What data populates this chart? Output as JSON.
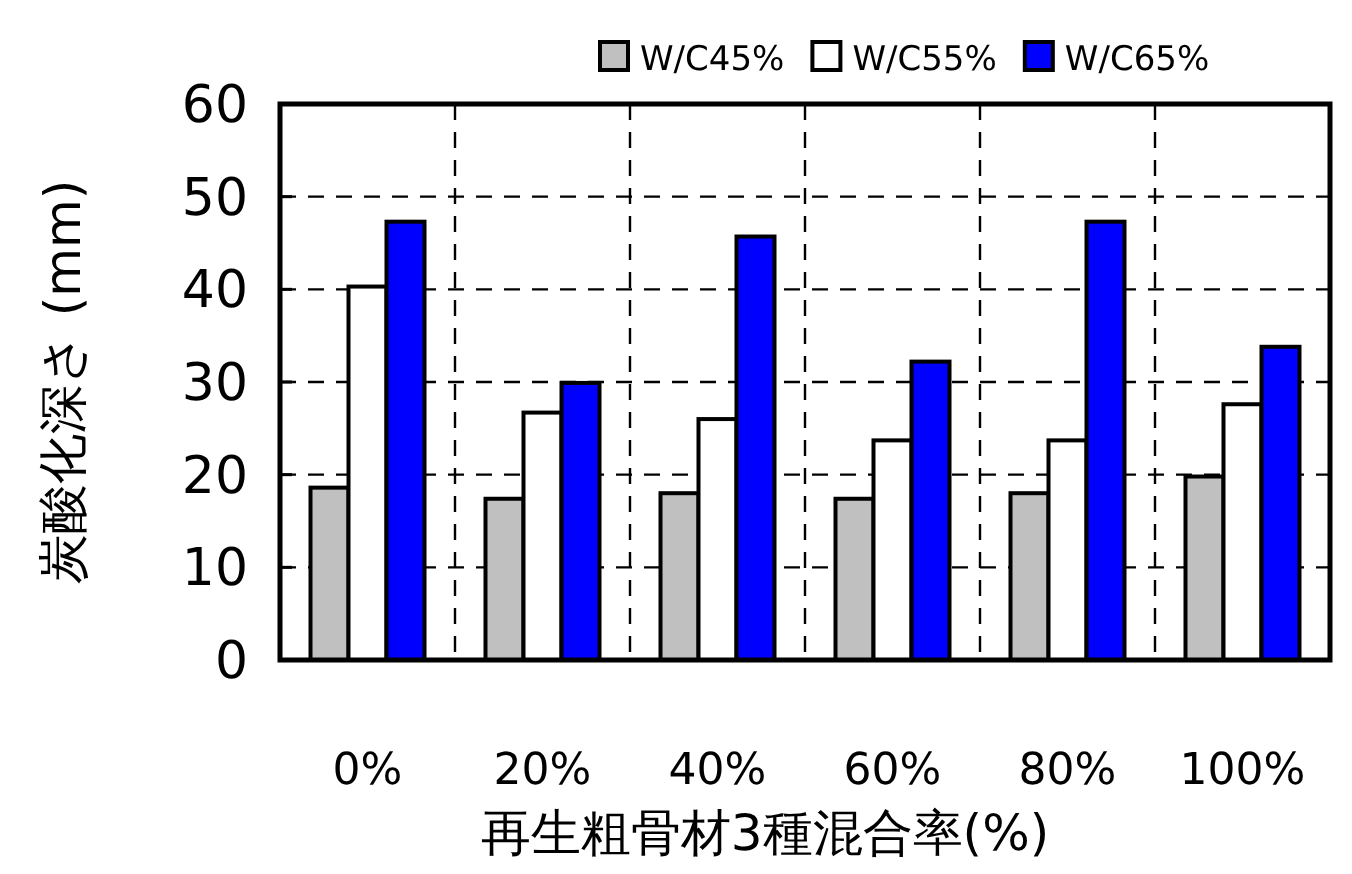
{
  "chart_data": {
    "type": "bar",
    "xlabel": "再生粗骨材3種混合率(%)",
    "ylabel": "炭酸化深さ (mm)",
    "categories": [
      "0%",
      "20%",
      "40%",
      "60%",
      "80%",
      "100%"
    ],
    "series": [
      {
        "name": "W/C45%",
        "color": "#c0c0c0",
        "values": [
          18.6,
          17.4,
          18.0,
          17.4,
          18.0,
          19.8
        ]
      },
      {
        "name": "W/C55%",
        "color": "#ffffff",
        "values": [
          40.3,
          26.7,
          26.0,
          23.7,
          23.7,
          27.6
        ]
      },
      {
        "name": "W/C65%",
        "color": "#0000ff",
        "values": [
          47.3,
          29.9,
          45.7,
          32.2,
          47.3,
          33.8
        ]
      }
    ],
    "ylim": [
      0,
      60
    ],
    "yticks": [
      0,
      10,
      20,
      30,
      40,
      50,
      60
    ],
    "grid": true,
    "legend": "top"
  }
}
